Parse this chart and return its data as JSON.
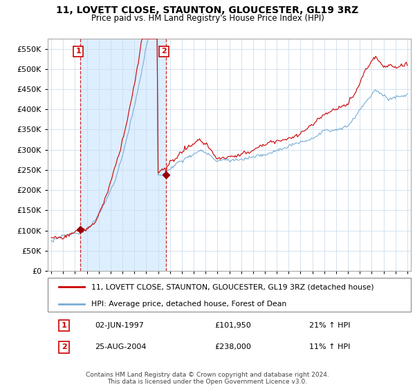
{
  "title": "11, LOVETT CLOSE, STAUNTON, GLOUCESTER, GL19 3RZ",
  "subtitle": "Price paid vs. HM Land Registry's House Price Index (HPI)",
  "sale1_date": "02-JUN-1997",
  "sale1_price": 101950,
  "sale1_hpi": "21% ↑ HPI",
  "sale2_date": "25-AUG-2004",
  "sale2_price": 238000,
  "sale2_hpi": "11% ↑ HPI",
  "legend_house": "11, LOVETT CLOSE, STAUNTON, GLOUCESTER, GL19 3RZ (detached house)",
  "legend_hpi": "HPI: Average price, detached house, Forest of Dean",
  "footer": "Contains HM Land Registry data © Crown copyright and database right 2024.\nThis data is licensed under the Open Government Licence v3.0.",
  "house_color": "#cc0000",
  "hpi_color": "#7aadd4",
  "sale_marker_color": "#990000",
  "vline_color": "#cc0000",
  "shade_color": "#ddeeff",
  "ylim": [
    0,
    575000
  ],
  "yticks": [
    0,
    50000,
    100000,
    150000,
    200000,
    250000,
    300000,
    350000,
    400000,
    450000,
    500000,
    550000
  ],
  "xlim_start": 1994.7,
  "xlim_end": 2025.3,
  "sale1_x": 1997.42,
  "sale2_x": 2004.65,
  "background_color": "#ffffff",
  "grid_color": "#ccddee"
}
